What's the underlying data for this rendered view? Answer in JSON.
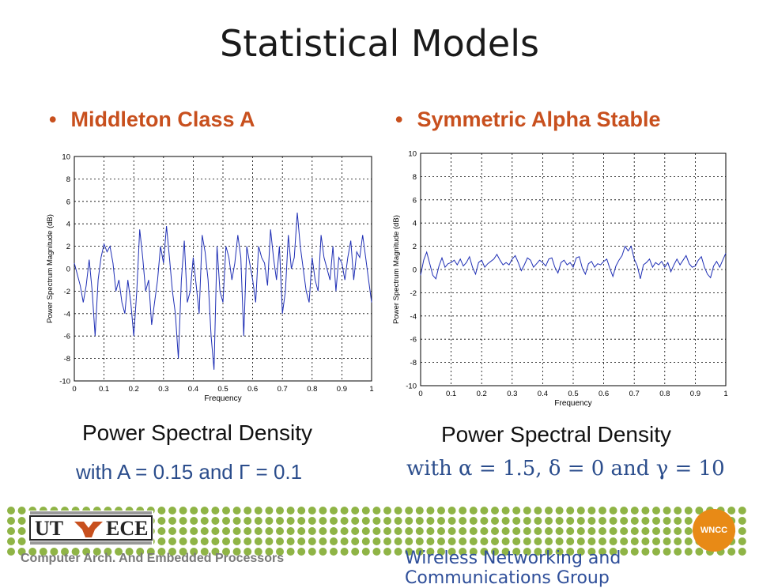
{
  "title": "Statistical Models",
  "bullets": {
    "left": "Middleton Class A",
    "right": "Symmetric Alpha Stable"
  },
  "chart_data": [
    {
      "type": "line",
      "xlabel": "Frequency",
      "ylabel": "Power Spectrum Magnitude (dB)",
      "xlim": [
        0,
        1
      ],
      "ylim": [
        -10,
        10
      ],
      "x_ticks": [
        "0",
        "0.1",
        "0.2",
        "0.3",
        "0.4",
        "0.5",
        "0.6",
        "0.7",
        "0.8",
        "0.9",
        "1"
      ],
      "y_ticks": [
        "10",
        "8",
        "6",
        "4",
        "2",
        "0",
        "-2",
        "-4",
        "-6",
        "-8",
        "-10"
      ],
      "grid": true,
      "series": [
        {
          "color": "#1f2fb5",
          "x": [
            0,
            0.02,
            0.03,
            0.04,
            0.05,
            0.06,
            0.07,
            0.08,
            0.09,
            0.1,
            0.11,
            0.12,
            0.13,
            0.14,
            0.15,
            0.16,
            0.17,
            0.18,
            0.19,
            0.2,
            0.21,
            0.22,
            0.23,
            0.24,
            0.25,
            0.26,
            0.27,
            0.28,
            0.29,
            0.3,
            0.31,
            0.32,
            0.33,
            0.34,
            0.35,
            0.36,
            0.37,
            0.38,
            0.39,
            0.4,
            0.41,
            0.42,
            0.43,
            0.44,
            0.45,
            0.46,
            0.47,
            0.48,
            0.49,
            0.5,
            0.51,
            0.52,
            0.53,
            0.54,
            0.55,
            0.56,
            0.57,
            0.58,
            0.59,
            0.6,
            0.61,
            0.62,
            0.63,
            0.64,
            0.65,
            0.66,
            0.67,
            0.68,
            0.69,
            0.7,
            0.71,
            0.72,
            0.73,
            0.74,
            0.75,
            0.76,
            0.77,
            0.78,
            0.79,
            0.8,
            0.81,
            0.82,
            0.83,
            0.84,
            0.85,
            0.86,
            0.87,
            0.88,
            0.89,
            0.9,
            0.91,
            0.92,
            0.93,
            0.94,
            0.95,
            0.96,
            0.97,
            0.98,
            0.99,
            1
          ],
          "y": [
            0.5,
            -1.5,
            -3,
            -1.5,
            0.8,
            -2,
            -6,
            -1,
            1,
            2.2,
            1.5,
            2,
            0.5,
            -2,
            -1,
            -3,
            -4,
            -1,
            -3,
            -6,
            -2,
            3.5,
            1,
            -2,
            -1,
            -5,
            -3,
            -1,
            2,
            0.5,
            3.8,
            1,
            -2,
            -4,
            -8,
            -1,
            2.5,
            -3,
            -2,
            1,
            -1.5,
            -4,
            3,
            1.5,
            -1,
            -6,
            -9,
            2,
            -2,
            -3,
            2,
            1,
            -1,
            0.5,
            3,
            1,
            -6,
            2,
            0.5,
            -1,
            -3,
            2,
            1,
            0.5,
            -1.5,
            3.5,
            1,
            -1,
            2,
            -4,
            -2,
            3,
            0,
            1,
            5,
            2,
            0,
            -2,
            -3,
            1,
            -1,
            -2,
            3,
            1,
            0,
            -1,
            2,
            -2,
            1,
            0.5,
            -1,
            1,
            2.5,
            -1,
            1.5,
            1,
            3,
            1,
            -1,
            -3
          ]
        }
      ]
    },
    {
      "type": "line",
      "xlabel": "Frequency",
      "ylabel": "Power Spectrum Magnitude (dB)",
      "xlim": [
        0,
        1
      ],
      "ylim": [
        -10,
        10
      ],
      "x_ticks": [
        "0",
        "0.1",
        "0.2",
        "0.3",
        "0.4",
        "0.5",
        "0.6",
        "0.7",
        "0.8",
        "0.9",
        "1"
      ],
      "y_ticks": [
        "10",
        "8",
        "6",
        "4",
        "2",
        "0",
        "-2",
        "-4",
        "-6",
        "-8",
        "-10"
      ],
      "grid": true,
      "series": [
        {
          "color": "#1f2fb5",
          "x": [
            0,
            0.01,
            0.02,
            0.03,
            0.04,
            0.05,
            0.06,
            0.07,
            0.08,
            0.09,
            0.1,
            0.11,
            0.12,
            0.13,
            0.14,
            0.15,
            0.16,
            0.17,
            0.18,
            0.19,
            0.2,
            0.21,
            0.22,
            0.23,
            0.24,
            0.25,
            0.26,
            0.27,
            0.28,
            0.29,
            0.3,
            0.31,
            0.32,
            0.33,
            0.34,
            0.35,
            0.36,
            0.37,
            0.38,
            0.39,
            0.4,
            0.41,
            0.42,
            0.43,
            0.44,
            0.45,
            0.46,
            0.47,
            0.48,
            0.49,
            0.5,
            0.51,
            0.52,
            0.53,
            0.54,
            0.55,
            0.56,
            0.57,
            0.58,
            0.59,
            0.6,
            0.61,
            0.62,
            0.63,
            0.64,
            0.65,
            0.66,
            0.67,
            0.68,
            0.69,
            0.7,
            0.71,
            0.72,
            0.73,
            0.74,
            0.75,
            0.76,
            0.77,
            0.78,
            0.79,
            0.8,
            0.81,
            0.82,
            0.83,
            0.84,
            0.85,
            0.86,
            0.87,
            0.88,
            0.89,
            0.9,
            0.91,
            0.92,
            0.93,
            0.94,
            0.95,
            0.96,
            0.97,
            0.98,
            0.99,
            1
          ],
          "y": [
            -0.5,
            0.8,
            1.5,
            0.5,
            -0.5,
            -0.8,
            0.3,
            1,
            0.2,
            0.5,
            0.6,
            0.8,
            0.4,
            0.9,
            0.3,
            0.6,
            1.1,
            0.2,
            -0.4,
            0.6,
            0.8,
            0.2,
            0.5,
            0.7,
            0.9,
            1.3,
            0.8,
            0.4,
            0.6,
            0.4,
            0.9,
            1.2,
            0.6,
            -0.1,
            0.4,
            1,
            0.8,
            0.2,
            0.5,
            0.8,
            0.6,
            0.3,
            0.9,
            1,
            0.2,
            -0.3,
            0.6,
            0.8,
            0.4,
            0.6,
            0.2,
            1,
            1.1,
            0.1,
            -0.4,
            0.5,
            0.7,
            0.2,
            0.5,
            0.4,
            0.7,
            0.9,
            0.1,
            -0.6,
            0.3,
            0.8,
            1.2,
            2,
            1.6,
            2,
            0.9,
            0.3,
            -0.8,
            0.4,
            0.6,
            0.9,
            0.2,
            0.6,
            0.4,
            0.7,
            0.2,
            0.6,
            -0.2,
            0.4,
            0.9,
            0.4,
            0.8,
            1.2,
            0.5,
            0.2,
            0.3,
            0.8,
            1.1,
            0.2,
            -0.4,
            -0.7,
            0.3,
            0.7,
            0.2,
            0.8,
            1.4
          ]
        }
      ]
    }
  ],
  "captions": {
    "left_title": "Power Spectral Density",
    "left_params": "with A = 0.15 and Γ = 0.1",
    "right_title": "Power Spectral Density",
    "right_params": "with α = 1.5, δ = 0 and γ = 10"
  },
  "footer": {
    "course": "Computer Arch. And Embedded Processors",
    "group": "Wireless Networking and Communications Group",
    "badge": "WNCC",
    "dot_color": "#8fb446"
  }
}
